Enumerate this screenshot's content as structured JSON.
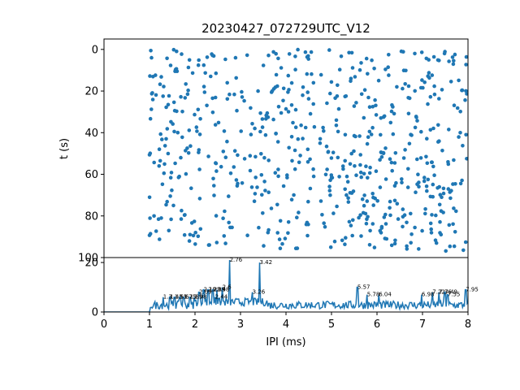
{
  "chart_data": [
    {
      "type": "scatter",
      "title": "20230427_072729UTC_V12",
      "xlabel": "",
      "ylabel": "t (s)",
      "xlim": [
        0,
        8
      ],
      "ylim": [
        100,
        -5
      ],
      "y_inverted": true,
      "yticks": [
        0,
        20,
        40,
        60,
        80,
        100
      ],
      "color": "#1f77b4",
      "point_density_note_range_x": [
        1.0,
        8.0
      ],
      "seed": 7
    },
    {
      "type": "line",
      "xlabel": "IPI (ms)",
      "ylabel": "",
      "xlim": [
        0,
        8
      ],
      "ylim": [
        0,
        22
      ],
      "xticks": [
        0,
        1,
        2,
        3,
        4,
        5,
        6,
        7,
        8
      ],
      "yticks": [
        0,
        20
      ],
      "color": "#1f77b4",
      "peaks": [
        {
          "x": 1.3,
          "y": 6,
          "label": "1.3"
        },
        {
          "x": 1.45,
          "y": 6,
          "label": "1.45"
        },
        {
          "x": 1.55,
          "y": 6,
          "label": "1.55"
        },
        {
          "x": 1.67,
          "y": 6,
          "label": "1.67"
        },
        {
          "x": 1.75,
          "y": 6,
          "label": "1.75"
        },
        {
          "x": 1.89,
          "y": 6,
          "label": "1.89"
        },
        {
          "x": 1.98,
          "y": 6,
          "label": "1.98"
        },
        {
          "x": 2.09,
          "y": 8,
          "label": "2.09"
        },
        {
          "x": 2.19,
          "y": 9,
          "label": "2.19"
        },
        {
          "x": 2.29,
          "y": 9,
          "label": "2.29"
        },
        {
          "x": 2.39,
          "y": 9,
          "label": "2.39"
        },
        {
          "x": 2.48,
          "y": 9,
          "label": "2.48"
        },
        {
          "x": 2.44,
          "y": 6,
          "label": "2.44"
        },
        {
          "x": 2.6,
          "y": 10,
          "label": "2.6"
        },
        {
          "x": 2.76,
          "y": 21,
          "label": "2.76"
        },
        {
          "x": 3.26,
          "y": 8,
          "label": "3.26"
        },
        {
          "x": 3.42,
          "y": 20,
          "label": "3.42"
        },
        {
          "x": 5.57,
          "y": 10,
          "label": "5.57"
        },
        {
          "x": 5.78,
          "y": 7,
          "label": "5.78"
        },
        {
          "x": 6.04,
          "y": 7,
          "label": "6.04"
        },
        {
          "x": 6.98,
          "y": 7,
          "label": "6.98"
        },
        {
          "x": 7.22,
          "y": 8,
          "label": "7.22"
        },
        {
          "x": 7.36,
          "y": 8,
          "label": "7.36"
        },
        {
          "x": 7.49,
          "y": 8,
          "label": "7.49"
        },
        {
          "x": 7.55,
          "y": 7,
          "label": "7.55"
        },
        {
          "x": 7.95,
          "y": 9,
          "label": "7.95"
        }
      ]
    }
  ]
}
